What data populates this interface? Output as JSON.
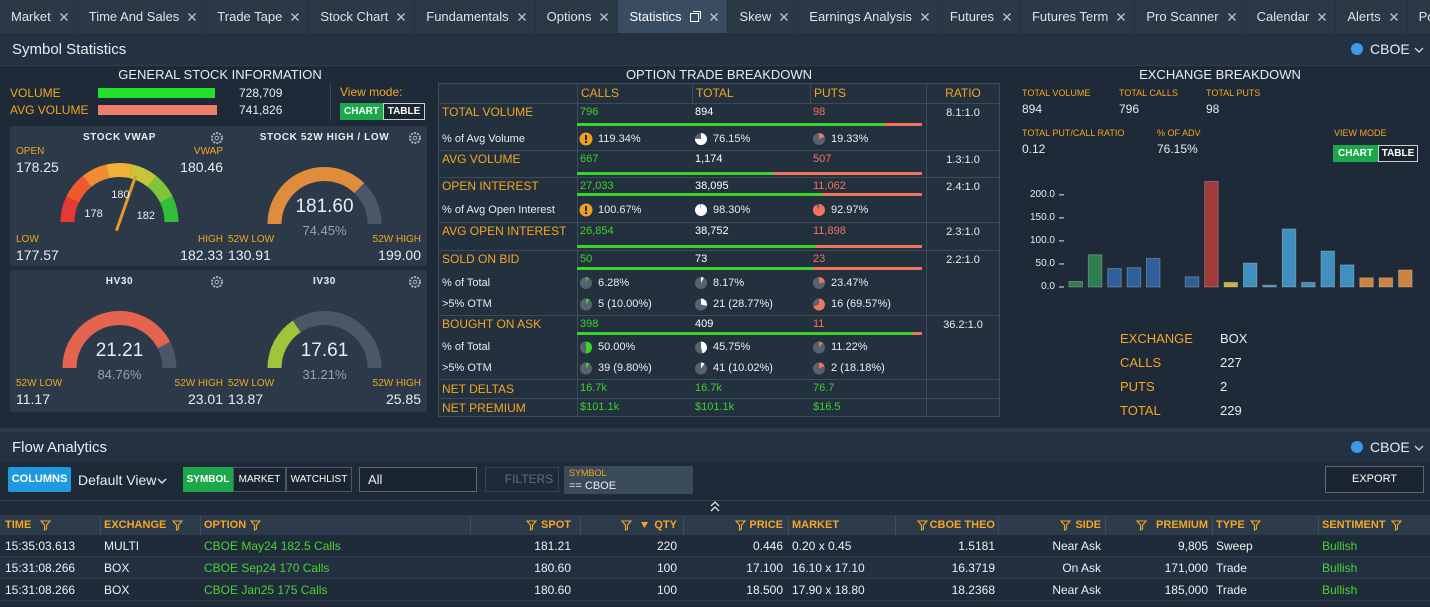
{
  "tabs": [
    "Market",
    "Time And Sales",
    "Trade Tape",
    "Stock Chart",
    "Fundamentals",
    "Options",
    "Statistics",
    "Skew",
    "Earnings Analysis",
    "Futures",
    "Futures Term",
    "Pro Scanner",
    "Calendar",
    "Alerts",
    "Positions"
  ],
  "active_tab": 6,
  "symbol_statistics": {
    "title": "Symbol Statistics",
    "exchange": "CBOE",
    "general": {
      "title": "GENERAL STOCK INFORMATION",
      "volume": {
        "label": "VOLUME",
        "value": "728,709"
      },
      "avg_volume": {
        "label": "AVG VOLUME",
        "value": "741,826"
      },
      "view_mode": {
        "label": "View mode:",
        "options": [
          "CHART",
          "TABLE"
        ],
        "selected": 0
      },
      "gauges": [
        {
          "title": "STOCK VWAP",
          "open": {
            "label": "OPEN",
            "value": "178.25"
          },
          "vwap": {
            "label": "VWAP",
            "value": "180.46"
          },
          "low": {
            "label": "LOW",
            "value": "177.57"
          },
          "high": {
            "label": "HIGH",
            "value": "182.33"
          },
          "ticks": [
            "178",
            "180",
            "182"
          ]
        },
        {
          "title": "STOCK 52W HIGH / LOW",
          "value": "181.60",
          "percent": "74.45%",
          "low": {
            "label": "52W LOW",
            "value": "130.91"
          },
          "high": {
            "label": "52W HIGH",
            "value": "199.00"
          },
          "color": "#e08c3c"
        },
        {
          "title": "HV30",
          "value": "21.21",
          "percent": "84.76%",
          "low": {
            "label": "52W LOW",
            "value": "11.17"
          },
          "high": {
            "label": "52W HIGH",
            "value": "23.01"
          },
          "color": "#e4644f"
        },
        {
          "title": "IV30",
          "value": "17.61",
          "percent": "31.21%",
          "low": {
            "label": "52W LOW",
            "value": "13.87"
          },
          "high": {
            "label": "52W HIGH",
            "value": "25.85"
          },
          "color": "#9fc63a"
        }
      ]
    },
    "option_breakdown": {
      "title": "OPTION TRADE BREAKDOWN",
      "columns": [
        "CALLS",
        "TOTAL",
        "PUTS",
        "RATIO"
      ],
      "groups": [
        {
          "rows": [
            {
              "label": "TOTAL VOLUME",
              "values": [
                "796",
                "894",
                "98"
              ]
            },
            {
              "label": "% of Avg Volume",
              "values": [
                "119.34%",
                "76.15%",
                "19.33%"
              ]
            }
          ],
          "ratio": "8.1:1.0"
        },
        {
          "rows": [
            {
              "label": "AVG VOLUME",
              "values": [
                "667",
                "1,174",
                "507"
              ]
            }
          ],
          "ratio": "1.3:1.0"
        },
        {
          "rows": [
            {
              "label": "OPEN INTEREST",
              "values": [
                "27,033",
                "38,095",
                "11,062"
              ]
            },
            {
              "label": "% of Avg Open Interest",
              "values": [
                "100.67%",
                "98.30%",
                "92.97%"
              ]
            }
          ],
          "ratio": "2.4:1.0"
        },
        {
          "rows": [
            {
              "label": "AVG OPEN INTEREST",
              "values": [
                "26,854",
                "38,752",
                "11,898"
              ]
            }
          ],
          "ratio": "2.3:1.0"
        },
        {
          "rows": [
            {
              "label": "SOLD ON BID",
              "values": [
                "50",
                "73",
                "23"
              ]
            },
            {
              "label": "% of Total",
              "values": [
                "6.28%",
                "8.17%",
                "23.47%"
              ]
            },
            {
              "label": ">5% OTM",
              "values": [
                "5 (10.00%)",
                "21 (28.77%)",
                "16 (69.57%)"
              ]
            }
          ],
          "ratio": "2.2:1.0"
        },
        {
          "rows": [
            {
              "label": "BOUGHT ON ASK",
              "values": [
                "398",
                "409",
                "11"
              ]
            },
            {
              "label": "% of Total",
              "values": [
                "50.00%",
                "45.75%",
                "11.22%"
              ]
            },
            {
              "label": ">5% OTM",
              "values": [
                "39 (9.80%)",
                "41 (10.02%)",
                "2 (18.18%)"
              ]
            }
          ],
          "ratio": "36.2:1.0"
        },
        {
          "rows": [
            {
              "label": "NET DELTAS",
              "values": [
                "16.7k",
                "16.7k",
                "76.7"
              ]
            }
          ]
        },
        {
          "rows": [
            {
              "label": "NET PREMIUM",
              "values": [
                "$101.1k",
                "$101.1k",
                "$16.5"
              ]
            }
          ]
        }
      ]
    },
    "exchange_breakdown": {
      "title": "EXCHANGE BREAKDOWN",
      "stats": [
        {
          "label": "TOTAL VOLUME",
          "value": "894"
        },
        {
          "label": "TOTAL CALLS",
          "value": "796"
        },
        {
          "label": "TOTAL PUTS",
          "value": "98"
        },
        {
          "label": "TOTAL PUT/CALL RATIO",
          "value": "0.12"
        },
        {
          "label": "% OF ADV",
          "value": "76.15%"
        }
      ],
      "view_mode": {
        "label": "VIEW MODE",
        "options": [
          "CHART",
          "TABLE"
        ],
        "selected": 0
      },
      "chart": {
        "type": "bar",
        "categories": [
          null,
          null,
          null,
          null,
          null,
          null,
          null,
          null,
          null,
          null,
          null,
          null,
          null,
          null,
          null,
          null,
          null,
          null
        ],
        "values": [
          12,
          70,
          40,
          42,
          62,
          0,
          22,
          229,
          10,
          52,
          4,
          126,
          10,
          78,
          48,
          20,
          20,
          37
        ],
        "colors": [
          "#2e7d4f",
          "#2e7d4f",
          "#2f5f9a",
          "#2f5f9a",
          "#2f5f9a",
          "#2f5f9a",
          "#2f5f9a",
          "#a33a3a",
          "#c9b43c",
          "#3f8fbf",
          "#3f8fbf",
          "#3f8fbf",
          "#3f8fbf",
          "#3f8fbf",
          "#3f8fbf",
          "#c88440",
          "#c88440",
          "#c88440"
        ],
        "ylim": [
          0,
          230
        ],
        "yticks": [
          {
            "value": 0,
            "label": "0.0"
          },
          {
            "value": 50,
            "label": "50.0"
          },
          {
            "value": 100,
            "label": "100.0"
          },
          {
            "value": 150,
            "label": "150.0"
          },
          {
            "value": 200,
            "label": "200.0"
          }
        ]
      },
      "detail": [
        {
          "label": "EXCHANGE",
          "value": "BOX"
        },
        {
          "label": "CALLS",
          "value": "227"
        },
        {
          "label": "PUTS",
          "value": "2"
        },
        {
          "label": "TOTAL",
          "value": "229"
        }
      ]
    }
  },
  "flow_analytics": {
    "title": "Flow Analytics",
    "exchange": "CBOE",
    "toolbar": {
      "columns": "COLUMNS",
      "view": "Default View",
      "scopes": [
        "SYMBOL",
        "MARKET",
        "WATCHLIST"
      ],
      "selected_scope": 0,
      "filter_value": "All",
      "filters": "FILTERS",
      "symbol_filter": {
        "label": "SYMBOL",
        "value": "== CBOE"
      },
      "export": "EXPORT"
    },
    "table": {
      "columns": [
        "TIME",
        "EXCHANGE",
        "OPTION",
        "SPOT",
        "QTY",
        "PRICE",
        "MARKET",
        "CBOE THEO",
        "SIDE",
        "PREMIUM",
        "TYPE",
        "SENTIMENT"
      ],
      "rows": [
        [
          "15:35:03.613",
          "MULTI",
          "CBOE May24 182.5 Calls",
          "181.21",
          "220",
          "0.446",
          "0.20 x 0.45",
          "1.5181",
          "Near Ask",
          "9,805",
          "Sweep",
          "Bullish"
        ],
        [
          "15:31:08.266",
          "BOX",
          "CBOE Sep24 170 Calls",
          "180.60",
          "100",
          "17.100",
          "16.10 x 17.10",
          "16.3719",
          "On Ask",
          "171,000",
          "Trade",
          "Bullish"
        ],
        [
          "15:31:08.266",
          "BOX",
          "CBOE Jan25 175 Calls",
          "180.60",
          "100",
          "18.500",
          "17.90 x 18.80",
          "18.2368",
          "Near Ask",
          "185,000",
          "Trade",
          "Bullish"
        ]
      ]
    }
  }
}
